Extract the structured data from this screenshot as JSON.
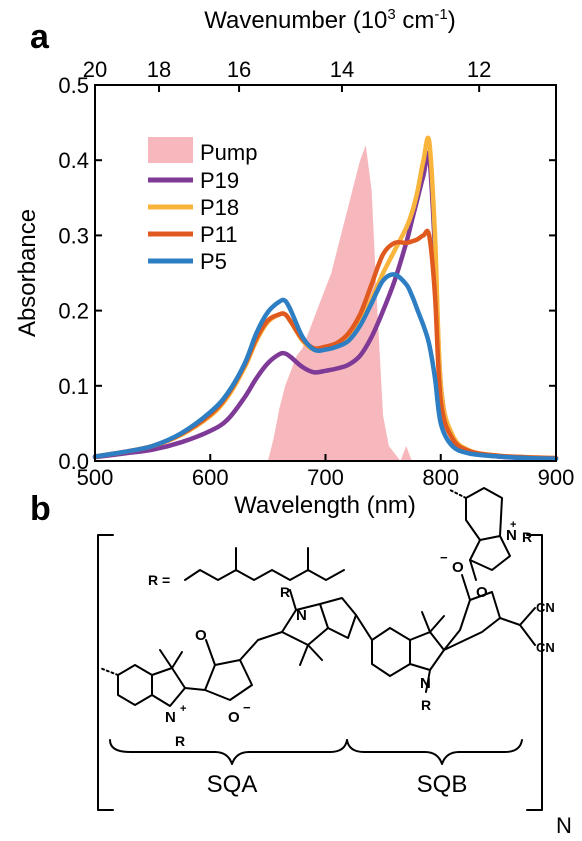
{
  "panel_a_label": "a",
  "panel_b_label": "b",
  "chart_data": {
    "type": "line",
    "xlabel": "Wavelength (nm)",
    "x2label_prefix": "Wavenumber (10",
    "x2label_exp": "3",
    "x2label_suffix": " cm",
    "x2label_exp2": "-1",
    "x2label_close": ")",
    "ylabel": "Absorbance",
    "xlim": [
      500,
      900
    ],
    "ylim": [
      0.0,
      0.5
    ],
    "xticks": [
      500,
      600,
      700,
      800,
      900
    ],
    "yticks": [
      0.0,
      0.1,
      0.2,
      0.3,
      0.4,
      0.5
    ],
    "ytick_labels": [
      "0.0",
      "0.1",
      "0.2",
      "0.3",
      "0.4",
      "0.5"
    ],
    "x2ticks": [
      20,
      18,
      16,
      14,
      12
    ],
    "grid": false,
    "legend": "top-left",
    "pump": {
      "name": "Pump",
      "color": "#f7b8bd",
      "x": [
        650,
        655,
        660,
        665,
        670,
        675,
        680,
        685,
        690,
        695,
        700,
        705,
        710,
        715,
        720,
        725,
        730,
        735,
        740,
        745,
        750,
        755,
        760,
        765,
        770,
        775,
        780
      ],
      "y": [
        0.0,
        0.03,
        0.07,
        0.1,
        0.12,
        0.14,
        0.15,
        0.17,
        0.19,
        0.21,
        0.23,
        0.25,
        0.28,
        0.31,
        0.34,
        0.37,
        0.4,
        0.42,
        0.36,
        0.2,
        0.06,
        0.02,
        0.01,
        0.0,
        0.02,
        0.0,
        0.0
      ]
    },
    "x": [
      500,
      525,
      550,
      575,
      600,
      615,
      630,
      640,
      650,
      660,
      665,
      670,
      680,
      690,
      700,
      710,
      720,
      730,
      740,
      750,
      760,
      770,
      775,
      780,
      785,
      790,
      795,
      800,
      810,
      825,
      850,
      875,
      900
    ],
    "series": [
      {
        "name": "P19",
        "color": "#7e3a96",
        "values": [
          0.005,
          0.01,
          0.015,
          0.025,
          0.04,
          0.055,
          0.085,
          0.11,
          0.13,
          0.142,
          0.143,
          0.138,
          0.125,
          0.118,
          0.12,
          0.123,
          0.128,
          0.14,
          0.165,
          0.2,
          0.24,
          0.29,
          0.32,
          0.35,
          0.38,
          0.405,
          0.28,
          0.1,
          0.03,
          0.012,
          0.006,
          0.004,
          0.003
        ]
      },
      {
        "name": "P18",
        "color": "#f9b43c",
        "values": [
          0.006,
          0.012,
          0.02,
          0.035,
          0.06,
          0.085,
          0.125,
          0.16,
          0.185,
          0.195,
          0.195,
          0.185,
          0.16,
          0.148,
          0.15,
          0.155,
          0.165,
          0.185,
          0.215,
          0.25,
          0.28,
          0.31,
          0.33,
          0.36,
          0.4,
          0.425,
          0.3,
          0.1,
          0.035,
          0.014,
          0.007,
          0.005,
          0.004
        ]
      },
      {
        "name": "P11",
        "color": "#e0591e",
        "values": [
          0.006,
          0.012,
          0.02,
          0.036,
          0.062,
          0.088,
          0.128,
          0.163,
          0.187,
          0.195,
          0.195,
          0.185,
          0.162,
          0.15,
          0.152,
          0.157,
          0.17,
          0.195,
          0.235,
          0.275,
          0.29,
          0.29,
          0.292,
          0.295,
          0.3,
          0.3,
          0.22,
          0.08,
          0.03,
          0.013,
          0.007,
          0.005,
          0.004
        ]
      },
      {
        "name": "P5",
        "color": "#2e7ec4",
        "values": [
          0.006,
          0.012,
          0.02,
          0.037,
          0.065,
          0.09,
          0.13,
          0.17,
          0.198,
          0.212,
          0.213,
          0.2,
          0.165,
          0.148,
          0.148,
          0.152,
          0.16,
          0.18,
          0.21,
          0.24,
          0.248,
          0.235,
          0.22,
          0.2,
          0.18,
          0.155,
          0.11,
          0.05,
          0.02,
          0.01,
          0.006,
          0.004,
          0.003
        ]
      }
    ]
  },
  "structure": {
    "r_label": "R =",
    "sqa_label": "SQA",
    "sqb_label": "SQB",
    "repeat_label": "N",
    "atoms": {
      "O": "O",
      "N": "N",
      "R": "R",
      "CN": "CN",
      "plus": "+",
      "minus": "−"
    }
  }
}
